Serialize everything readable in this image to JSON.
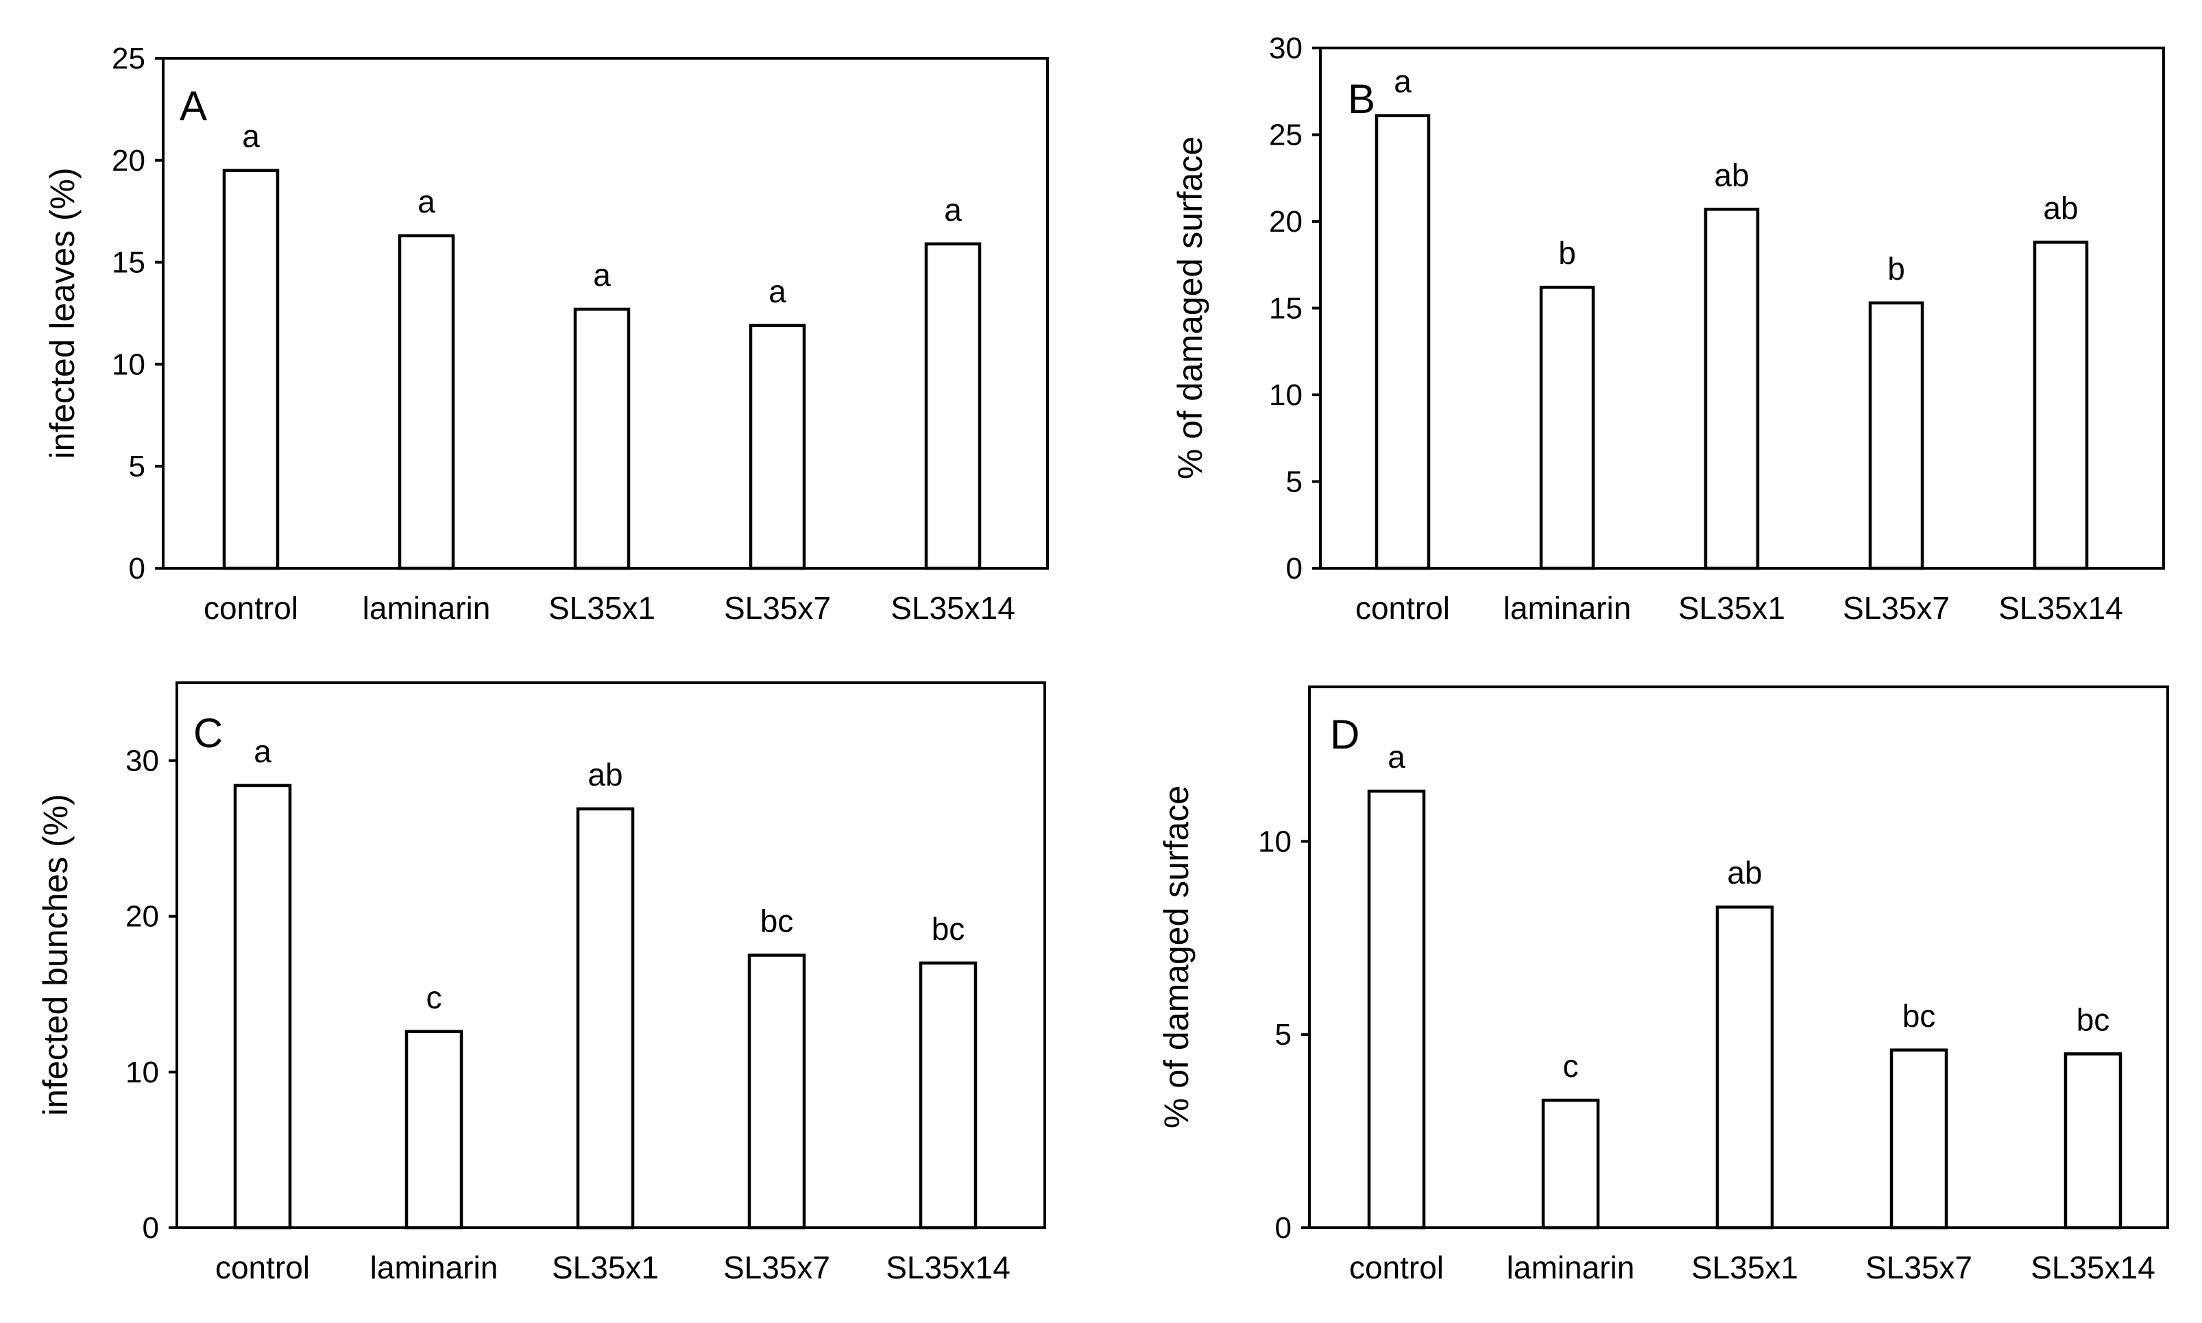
{
  "chart_data": [
    {
      "panel": "A",
      "type": "bar",
      "categories": [
        "control",
        "laminarin",
        "SL35x1",
        "SL35x7",
        "SL35x14"
      ],
      "values": [
        19.5,
        16.3,
        12.7,
        11.9,
        15.9
      ],
      "significance": [
        "a",
        "a",
        "a",
        "a",
        "a"
      ],
      "ylabel": "infected leaves (%)",
      "xlabel": "",
      "ylim": [
        0,
        25
      ],
      "yticks": [
        0,
        5,
        10,
        15,
        20,
        25
      ],
      "ytick_labels": [
        "0",
        "5",
        "10",
        "15",
        "20",
        "25"
      ],
      "grid": false
    },
    {
      "panel": "B",
      "type": "bar",
      "categories": [
        "control",
        "laminarin",
        "SL35x1",
        "SL35x7",
        "SL35x14"
      ],
      "values": [
        26.1,
        16.2,
        20.7,
        15.3,
        18.8
      ],
      "significance": [
        "a",
        "b",
        "ab",
        "b",
        "ab"
      ],
      "ylabel": "% of damaged surface",
      "xlabel": "",
      "ylim": [
        0,
        30
      ],
      "yticks": [
        0,
        5,
        10,
        15,
        20,
        25,
        30
      ],
      "ytick_labels": [
        "0",
        "5",
        "10",
        "15",
        "20",
        "25",
        "30"
      ],
      "grid": false
    },
    {
      "panel": "C",
      "type": "bar",
      "categories": [
        "control",
        "laminarin",
        "SL35x1",
        "SL35x7",
        "SL35x14"
      ],
      "values": [
        28.4,
        12.6,
        26.9,
        17.5,
        17.0
      ],
      "significance": [
        "a",
        "c",
        "ab",
        "bc",
        "bc"
      ],
      "ylabel": "infected bunches (%)",
      "xlabel": "",
      "ylim": [
        0,
        35
      ],
      "yticks": [
        0,
        10,
        20,
        30
      ],
      "ytick_labels": [
        "0",
        "10",
        "20",
        "30"
      ],
      "grid": false
    },
    {
      "panel": "D",
      "type": "bar",
      "categories": [
        "control",
        "laminarin",
        "SL35x1",
        "SL35x7",
        "SL35x14"
      ],
      "values": [
        11.3,
        3.3,
        8.3,
        4.6,
        4.5
      ],
      "significance": [
        "a",
        "c",
        "ab",
        "bc",
        "bc"
      ],
      "ylabel": "% of damaged surface",
      "xlabel": "",
      "ylim": [
        0,
        14
      ],
      "yticks": [
        0,
        5,
        10
      ],
      "ytick_labels": [
        "0",
        "5",
        "10"
      ],
      "grid": false
    }
  ]
}
